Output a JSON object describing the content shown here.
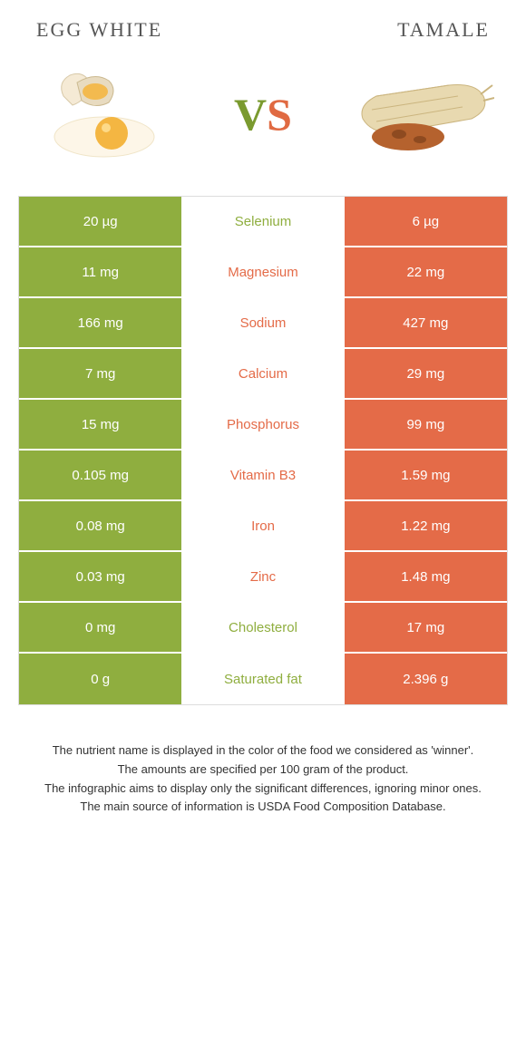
{
  "header": {
    "left_title": "Egg white",
    "right_title": "Tamale"
  },
  "vs": {
    "v": "V",
    "s": "S"
  },
  "colors": {
    "left_bg": "#8fae3f",
    "right_bg": "#e46b48",
    "mid_left_text": "#8fae3f",
    "mid_right_text": "#e46b48"
  },
  "comparison": {
    "type": "table",
    "rows": [
      {
        "left": "20 µg",
        "label": "Selenium",
        "right": "6 µg",
        "winner": "left"
      },
      {
        "left": "11 mg",
        "label": "Magnesium",
        "right": "22 mg",
        "winner": "right"
      },
      {
        "left": "166 mg",
        "label": "Sodium",
        "right": "427 mg",
        "winner": "right"
      },
      {
        "left": "7 mg",
        "label": "Calcium",
        "right": "29 mg",
        "winner": "right"
      },
      {
        "left": "15 mg",
        "label": "Phosphorus",
        "right": "99 mg",
        "winner": "right"
      },
      {
        "left": "0.105 mg",
        "label": "Vitamin B3",
        "right": "1.59 mg",
        "winner": "right"
      },
      {
        "left": "0.08 mg",
        "label": "Iron",
        "right": "1.22 mg",
        "winner": "right"
      },
      {
        "left": "0.03 mg",
        "label": "Zinc",
        "right": "1.48 mg",
        "winner": "right"
      },
      {
        "left": "0 mg",
        "label": "Cholesterol",
        "right": "17 mg",
        "winner": "left"
      },
      {
        "left": "0 g",
        "label": "Saturated fat",
        "right": "2.396 g",
        "winner": "left"
      }
    ]
  },
  "footnotes": {
    "line1": "The nutrient name is displayed in the color of the food we considered as 'winner'.",
    "line2": "The amounts are specified per 100 gram of the product.",
    "line3": "The infographic aims to display only the significant differences, ignoring minor ones.",
    "line4": "The main source of information is USDA Food Composition Database."
  }
}
